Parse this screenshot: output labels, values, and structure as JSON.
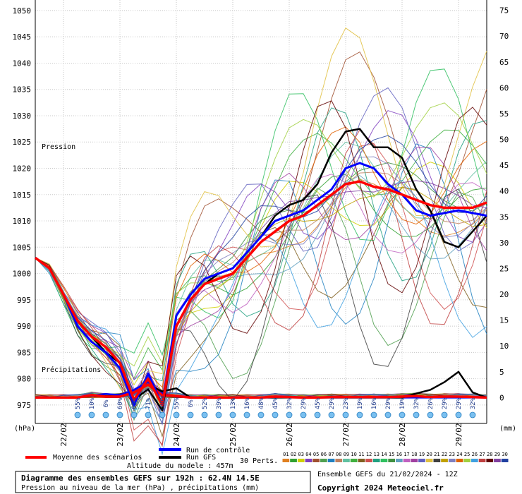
{
  "chart_data": {
    "type": "line",
    "title": "Diagramme des ensembles GEFS sur 192h : 62.4N 14.5E",
    "subtitle": "Pression au niveau de la mer (hPa) , précipitations (mm)",
    "left_axis": {
      "label": "(hPa)",
      "ticks": [
        975,
        980,
        985,
        990,
        995,
        1000,
        1005,
        1010,
        1015,
        1020,
        1025,
        1030,
        1035,
        1040,
        1045,
        1050
      ],
      "range": [
        971.5,
        1052
      ]
    },
    "right_axis": {
      "label": "(mm)",
      "ticks": [
        0,
        5,
        10,
        15,
        20,
        25,
        30,
        35,
        40,
        45,
        50,
        55,
        60,
        65,
        70,
        75
      ],
      "range": [
        -5,
        77
      ]
    },
    "x_axis": {
      "range_hours": [
        0,
        192
      ],
      "ticks": [
        {
          "hour": 12,
          "label": "22/02"
        },
        {
          "hour": 36,
          "label": "23/02"
        },
        {
          "hour": 60,
          "label": "24/02"
        },
        {
          "hour": 84,
          "label": "25/02"
        },
        {
          "hour": 108,
          "label": "26/02"
        },
        {
          "hour": 132,
          "label": "27/02"
        },
        {
          "hour": 156,
          "label": "28/02"
        },
        {
          "hour": 180,
          "label": "29/02"
        }
      ]
    },
    "annotations": {
      "pressure": "Pression",
      "precip": "Précipitations"
    },
    "snow_probabilities": [
      {
        "hour": 18,
        "label": "55%"
      },
      {
        "hour": 24,
        "label": "10%"
      },
      {
        "hour": 30,
        "label": "6%"
      },
      {
        "hour": 36,
        "label": "60%"
      },
      {
        "hour": 42,
        "label": "65%"
      },
      {
        "hour": 48,
        "label": "71%"
      },
      {
        "hour": 54,
        "label": "100%"
      },
      {
        "hour": 60,
        "label": "55%"
      },
      {
        "hour": 66,
        "label": "6%"
      },
      {
        "hour": 72,
        "label": "52%"
      },
      {
        "hour": 78,
        "label": "39%"
      },
      {
        "hour": 84,
        "label": "13%"
      },
      {
        "hour": 90,
        "label": "16%"
      },
      {
        "hour": 96,
        "label": "48%"
      },
      {
        "hour": 102,
        "label": "45%"
      },
      {
        "hour": 108,
        "label": "32%"
      },
      {
        "hour": 114,
        "label": "29%"
      },
      {
        "hour": 120,
        "label": "45%"
      },
      {
        "hour": 126,
        "label": "29%"
      },
      {
        "hour": 132,
        "label": "23%"
      },
      {
        "hour": 138,
        "label": "19%"
      },
      {
        "hour": 144,
        "label": "16%"
      },
      {
        "hour": 150,
        "label": "29%"
      },
      {
        "hour": 156,
        "label": "19%"
      },
      {
        "hour": 162,
        "label": "32%"
      },
      {
        "hour": 168,
        "label": "26%"
      },
      {
        "hour": 174,
        "label": "29%"
      },
      {
        "hour": 180,
        "label": "29%"
      },
      {
        "hour": 186,
        "label": "32%"
      }
    ],
    "mean": {
      "name": "Moyenne des scénarios",
      "color": "#ff0000",
      "hours": [
        0,
        6,
        12,
        18,
        24,
        30,
        36,
        42,
        48,
        54,
        60,
        66,
        72,
        78,
        84,
        90,
        96,
        102,
        108,
        114,
        120,
        126,
        132,
        138,
        144,
        150,
        156,
        162,
        168,
        174,
        180,
        186,
        192
      ],
      "values": [
        1003,
        1001,
        996,
        991,
        988,
        986,
        983,
        976,
        980,
        975,
        990,
        995,
        998,
        999,
        1000,
        1003,
        1006,
        1008,
        1010,
        1011,
        1013,
        1015,
        1017,
        1017.5,
        1016.5,
        1016,
        1015,
        1014,
        1013,
        1012.5,
        1012.5,
        1012.5,
        1013.5
      ]
    },
    "control": {
      "name": "Run de contrôle",
      "color": "#0000ff",
      "hours": [
        0,
        6,
        12,
        18,
        24,
        30,
        36,
        42,
        48,
        54,
        60,
        66,
        72,
        78,
        84,
        90,
        96,
        102,
        108,
        114,
        120,
        126,
        132,
        138,
        144,
        150,
        156,
        162,
        168,
        174,
        180,
        186,
        192
      ],
      "values": [
        1003,
        1001,
        996,
        990,
        987,
        985,
        982,
        975,
        981,
        975,
        992,
        996,
        999,
        1000,
        1001,
        1004,
        1007,
        1010,
        1011,
        1012,
        1014,
        1016,
        1020,
        1021,
        1020,
        1017,
        1015,
        1012,
        1011,
        1011.5,
        1012,
        1011.5,
        1011
      ]
    },
    "gfs": {
      "name": "Run GFS",
      "color": "#000000",
      "hours": [
        0,
        6,
        12,
        18,
        24,
        30,
        36,
        42,
        48,
        54,
        60,
        66,
        72,
        78,
        84,
        90,
        96,
        102,
        108,
        114,
        120,
        126,
        132,
        138,
        144,
        150,
        156,
        162,
        168,
        174,
        180,
        186,
        192
      ],
      "values": [
        1003,
        1001,
        996,
        991,
        988,
        985,
        983,
        976,
        978,
        974,
        990,
        995,
        998,
        1000,
        1001,
        1004,
        1007,
        1011,
        1013,
        1014,
        1017,
        1023,
        1027,
        1027.5,
        1024,
        1024,
        1022,
        1016,
        1012,
        1006,
        1005,
        1008,
        1011
      ]
    },
    "precip_mean": {
      "hours": [
        0,
        6,
        12,
        18,
        24,
        30,
        36,
        42,
        48,
        54,
        60,
        66,
        72,
        78,
        84,
        90,
        96,
        102,
        108,
        114,
        120,
        126,
        132,
        138,
        144,
        150,
        156,
        162,
        168,
        174,
        180,
        186,
        192
      ],
      "values": [
        0,
        0,
        0,
        0,
        0.5,
        0.2,
        0.2,
        1,
        2.5,
        0.5,
        0.3,
        0,
        0,
        0,
        0,
        0,
        0,
        0.2,
        0.1,
        0,
        0,
        0.1,
        0.1,
        0.1,
        0.1,
        0.1,
        0.2,
        0.3,
        0.1,
        0.2,
        0.2,
        0.1,
        0
      ]
    },
    "precip_control": {
      "hours": [
        0,
        6,
        12,
        18,
        24,
        30,
        36,
        42,
        48,
        54,
        60,
        66,
        72,
        78,
        84,
        90,
        96,
        102,
        108,
        114,
        120,
        126,
        132,
        138,
        144,
        150,
        156,
        162,
        168,
        174,
        180,
        186,
        192
      ],
      "values": [
        0,
        0,
        0,
        0,
        0.4,
        0.7,
        0.5,
        1.5,
        3,
        0.8,
        0.2,
        0,
        0,
        0,
        0,
        0,
        0,
        0,
        0.1,
        0,
        0,
        0,
        0,
        0,
        0,
        0,
        0,
        0,
        0,
        0,
        0,
        0,
        0
      ]
    },
    "precip_gfs": {
      "hours": [
        0,
        6,
        12,
        18,
        24,
        30,
        36,
        42,
        48,
        54,
        60,
        66,
        72,
        78,
        84,
        90,
        96,
        102,
        108,
        114,
        120,
        126,
        132,
        138,
        144,
        150,
        156,
        162,
        168,
        174,
        180,
        186,
        192
      ],
      "values": [
        0,
        0,
        0,
        0,
        0.5,
        0.3,
        0.2,
        1,
        2.5,
        1.2,
        1.8,
        0,
        0,
        0,
        0,
        0,
        0,
        0,
        0,
        0,
        0,
        0,
        0,
        0,
        0,
        0,
        0,
        0.8,
        1.5,
        3,
        5,
        1,
        0
      ]
    },
    "perturbations": {
      "label": "30 Perts.",
      "names": [
        "01",
        "02",
        "03",
        "04",
        "05",
        "06",
        "07",
        "08",
        "09",
        "10",
        "11",
        "12",
        "13",
        "14",
        "15",
        "16",
        "17",
        "18",
        "19",
        "20",
        "21",
        "22",
        "23",
        "24",
        "25",
        "26",
        "27",
        "28",
        "29",
        "30"
      ],
      "colors": [
        "#e08020",
        "#30a030",
        "#d0d000",
        "#8040c0",
        "#a05030",
        "#50a050",
        "#2080c0",
        "#c08060",
        "#60c0a0",
        "#40b040",
        "#806020",
        "#d05050",
        "#20a080",
        "#30c060",
        "#409040",
        "#60a0c0",
        "#c060c0",
        "#a040a0",
        "#6060c0",
        "#e0c040",
        "#404040",
        "#c0a000",
        "#8080c0",
        "#e06000",
        "#a0d040",
        "#40a0e0",
        "#c04040",
        "#600000",
        "#8040a0",
        "#2040a0"
      ]
    }
  },
  "legend": {
    "mean_label": "Moyenne des scénarios",
    "control_label": "Run de contrôle",
    "gfs_label": "Run GFS",
    "altitude": "Altitude du modele : 457m",
    "perts_label": "30 Perts."
  },
  "footer": {
    "title": "Diagramme des ensembles GEFS sur 192h : 62.4N 14.5E",
    "subtitle": "Pression au niveau de la mer (hPa) , précipitations (mm)",
    "run": "Ensemble GEFS du 21/02/2024 - 12Z",
    "copyright": "Copyright 2024 Meteociel.fr"
  }
}
